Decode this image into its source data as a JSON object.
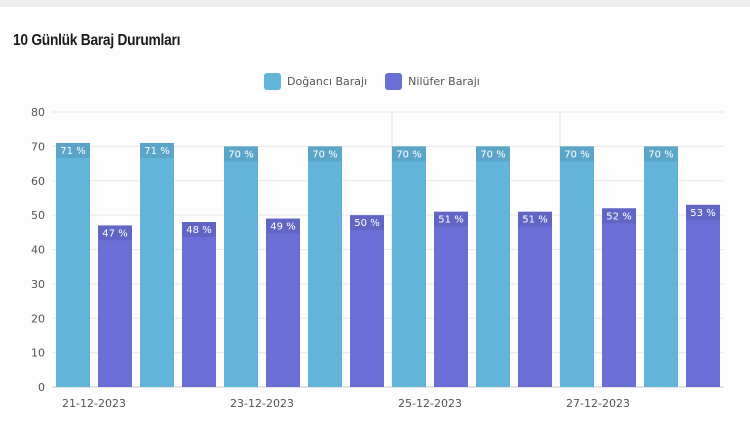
{
  "title": "10 Günlük Baraj Durumları",
  "chart_data": {
    "type": "bar",
    "x_tick_labels": [
      "21-12-2023",
      "23-12-2023",
      "25-12-2023",
      "27-12-2023"
    ],
    "series": [
      {
        "name": "Doğancı Barajı",
        "color": "#62b4d9",
        "values": [
          71,
          71,
          70,
          70,
          70,
          70,
          70,
          70
        ]
      },
      {
        "name": "Nilüfer Barajı",
        "color": "#6a6fd6",
        "values": [
          47,
          48,
          49,
          50,
          51,
          51,
          52,
          53
        ]
      }
    ],
    "data_label_suffix": " %",
    "ylim": [
      0,
      80
    ],
    "yticks": [
      0,
      10,
      20,
      30,
      40,
      50,
      60,
      70,
      80
    ],
    "grid": true,
    "legend_position": "top"
  }
}
